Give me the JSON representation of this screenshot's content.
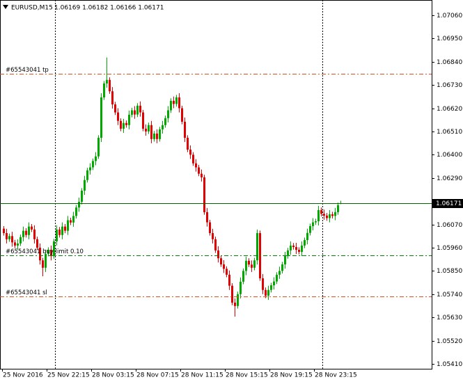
{
  "chart_data": {
    "type": "candlestick",
    "title": "EURUSD,M15",
    "quote": "1.06169 1.06182 1.06166 1.06171",
    "categories": [
      "25 Nov 2016",
      null,
      null,
      null,
      null,
      null,
      null,
      null,
      null,
      null,
      null,
      null,
      null,
      null,
      null,
      null,
      "25 Nov 22:15",
      null,
      null,
      null,
      null,
      null,
      null,
      null,
      null,
      null,
      null,
      null,
      null,
      null,
      null,
      null,
      "28 Nov 03:15",
      null,
      null,
      null,
      null,
      null,
      null,
      null,
      null,
      null,
      null,
      null,
      null,
      null,
      null,
      null,
      "28 Nov 07:15",
      null,
      null,
      null,
      null,
      null,
      null,
      null,
      null,
      null,
      null,
      null,
      null,
      null,
      null,
      null,
      "28 Nov 11:15",
      null,
      null,
      null,
      null,
      null,
      null,
      null,
      null,
      null,
      null,
      null,
      null,
      null,
      null,
      null,
      "28 Nov 15:15",
      null,
      null,
      null,
      null,
      null,
      null,
      null,
      null,
      null,
      null,
      null,
      null,
      null,
      null,
      null,
      "28 Nov 19:15",
      null,
      null,
      null,
      null,
      null,
      null,
      null,
      null,
      null,
      null,
      null,
      null,
      null,
      null,
      null,
      "28 Nov 23:15",
      null,
      null,
      null,
      null,
      null,
      null,
      null,
      null,
      null
    ],
    "open": [
      1.0605,
      1.06029,
      1.06,
      1.06015,
      1.05985,
      1.0597,
      1.0598,
      1.0601,
      1.0604,
      1.0602,
      1.0606,
      1.06046,
      1.06,
      1.0596,
      1.059,
      1.05865,
      1.05931,
      1.0595,
      1.0592,
      1.0599,
      1.06046,
      1.0602,
      1.0606,
      1.0604,
      1.0609,
      1.06079,
      1.0611,
      1.0615,
      1.06177,
      1.0623,
      1.0628,
      1.06326,
      1.0634,
      1.0637,
      1.06392,
      1.0648,
      1.06671,
      1.06737,
      1.06754,
      1.067,
      1.06638,
      1.066,
      1.0656,
      1.06523,
      1.0655,
      1.0654,
      1.06589,
      1.0661,
      1.0659,
      1.06632,
      1.066,
      1.06523,
      1.0651,
      1.0654,
      1.06474,
      1.065,
      1.06474,
      1.0652,
      1.0654,
      1.06573,
      1.0661,
      1.06655,
      1.0664,
      1.06671,
      1.0662,
      1.06556,
      1.0648,
      1.06424,
      1.064,
      1.06359,
      1.0634,
      1.0631,
      1.06293,
      1.06128,
      1.0608,
      1.06029,
      1.06,
      1.05947,
      1.0591,
      1.05881,
      1.0586,
      1.05832,
      1.0578,
      1.057,
      1.05684,
      1.0574,
      1.05799,
      1.0585,
      1.05898,
      1.0588,
      1.05865,
      1.059,
      1.06029,
      1.05815,
      1.0576,
      1.05733,
      1.0576,
      1.05782,
      1.058,
      1.05832,
      1.0585,
      1.05881,
      1.0592,
      1.05947,
      1.0597,
      1.05963,
      1.0595,
      1.0594,
      1.0597,
      1.05996,
      1.0603,
      1.06062,
      1.0608,
      1.06085,
      1.06138,
      1.0612,
      1.06112,
      1.061,
      1.06118,
      1.0611,
      1.06128,
      1.06169
    ],
    "high": [
      1.06062,
      1.06049,
      1.06027,
      1.06035,
      1.05997,
      1.06,
      1.06022,
      1.0606,
      1.06052,
      1.0608,
      1.06072,
      1.06066,
      1.06012,
      1.0598,
      1.05912,
      1.05951,
      1.05962,
      1.0597,
      1.06002,
      1.06066,
      1.06058,
      1.0608,
      1.06072,
      1.0611,
      1.06102,
      1.0613,
      1.06162,
      1.06197,
      1.06242,
      1.063,
      1.06338,
      1.0636,
      1.06382,
      1.06412,
      1.06492,
      1.06691,
      1.06749,
      1.0686,
      1.06766,
      1.0672,
      1.0665,
      1.0662,
      1.06572,
      1.0657,
      1.06562,
      1.06609,
      1.06622,
      1.0663,
      1.06644,
      1.06652,
      1.06612,
      1.06543,
      1.06552,
      1.0656,
      1.06512,
      1.0652,
      1.06532,
      1.0656,
      1.06585,
      1.0663,
      1.06667,
      1.06675,
      1.06683,
      1.06691,
      1.06632,
      1.06576,
      1.06492,
      1.06444,
      1.06412,
      1.06379,
      1.06352,
      1.0633,
      1.06305,
      1.06148,
      1.06092,
      1.06049,
      1.06012,
      1.05967,
      1.05922,
      1.05901,
      1.05872,
      1.05852,
      1.05792,
      1.0572,
      1.05752,
      1.05819,
      1.05862,
      1.05918,
      1.0591,
      1.059,
      1.05912,
      1.06046,
      1.06041,
      1.05835,
      1.05772,
      1.0578,
      1.05794,
      1.0582,
      1.05844,
      1.0587,
      1.05893,
      1.0594,
      1.05959,
      1.0599,
      1.05982,
      1.05983,
      1.05962,
      1.0599,
      1.06008,
      1.0605,
      1.06074,
      1.061,
      1.06097,
      1.06158,
      1.0615,
      1.0614,
      1.06124,
      1.06138,
      1.0613,
      1.06148,
      1.06173,
      1.06182
    ],
    "low": [
      1.06017,
      1.0598,
      1.05988,
      1.05965,
      1.05958,
      1.0595,
      1.05968,
      1.0599,
      1.06008,
      1.06,
      1.06034,
      1.0598,
      1.05948,
      1.0588,
      1.05825,
      1.05845,
      1.05919,
      1.059,
      1.05908,
      1.0597,
      1.06008,
      1.06,
      1.06028,
      1.0602,
      1.06067,
      1.06059,
      1.06098,
      1.0613,
      1.06165,
      1.0621,
      1.06268,
      1.06306,
      1.06328,
      1.0635,
      1.0638,
      1.0646,
      1.06659,
      1.06717,
      1.06688,
      1.06618,
      1.06588,
      1.0654,
      1.06511,
      1.06503,
      1.06528,
      1.0652,
      1.06577,
      1.0657,
      1.06578,
      1.0658,
      1.06511,
      1.0649,
      1.06498,
      1.06454,
      1.06462,
      1.06454,
      1.06462,
      1.065,
      1.06528,
      1.06553,
      1.06598,
      1.0662,
      1.06628,
      1.066,
      1.06544,
      1.0646,
      1.06412,
      1.0638,
      1.06347,
      1.0632,
      1.06298,
      1.06273,
      1.06116,
      1.0606,
      1.06017,
      1.0598,
      1.05935,
      1.0589,
      1.05869,
      1.0584,
      1.0582,
      1.0576,
      1.05688,
      1.05634,
      1.05672,
      1.0572,
      1.05787,
      1.0583,
      1.05868,
      1.05845,
      1.05853,
      1.0588,
      1.05803,
      1.0574,
      1.05721,
      1.05713,
      1.05748,
      1.05762,
      1.05788,
      1.05812,
      1.05838,
      1.05861,
      1.05908,
      1.05927,
      1.05951,
      1.0593,
      1.05928,
      1.0592,
      1.05958,
      1.05976,
      1.06018,
      1.06042,
      1.06068,
      1.06065,
      1.06108,
      1.06092,
      1.06088,
      1.0608,
      1.06098,
      1.0609,
      1.06116,
      1.06166
    ],
    "close": [
      1.06029,
      1.06,
      1.06015,
      1.05985,
      1.0597,
      1.0598,
      1.0601,
      1.0604,
      1.0602,
      1.0606,
      1.06046,
      1.06,
      1.0596,
      1.059,
      1.05865,
      1.05931,
      1.0595,
      1.0592,
      1.0599,
      1.06046,
      1.0602,
      1.0606,
      1.0604,
      1.0609,
      1.06079,
      1.0611,
      1.0615,
      1.06177,
      1.0623,
      1.0628,
      1.06326,
      1.0634,
      1.0637,
      1.06392,
      1.0648,
      1.06671,
      1.06737,
      1.06754,
      1.067,
      1.06638,
      1.066,
      1.0656,
      1.06523,
      1.0655,
      1.0654,
      1.06589,
      1.0661,
      1.0659,
      1.06632,
      1.066,
      1.06523,
      1.0651,
      1.0654,
      1.06474,
      1.065,
      1.06474,
      1.0652,
      1.0654,
      1.06573,
      1.0661,
      1.06655,
      1.0664,
      1.06671,
      1.0662,
      1.06556,
      1.0648,
      1.06424,
      1.064,
      1.06359,
      1.0634,
      1.0631,
      1.06293,
      1.06128,
      1.0608,
      1.06029,
      1.06,
      1.05947,
      1.0591,
      1.05881,
      1.0586,
      1.05832,
      1.0578,
      1.057,
      1.05684,
      1.0574,
      1.05799,
      1.0585,
      1.05898,
      1.0588,
      1.05865,
      1.059,
      1.06029,
      1.05815,
      1.0576,
      1.05733,
      1.0576,
      1.05782,
      1.058,
      1.05832,
      1.0585,
      1.05881,
      1.0592,
      1.05947,
      1.0597,
      1.05963,
      1.0595,
      1.0594,
      1.0597,
      1.05996,
      1.0603,
      1.06062,
      1.0608,
      1.06085,
      1.06138,
      1.0612,
      1.06112,
      1.061,
      1.06118,
      1.0611,
      1.06128,
      1.06161,
      1.06171
    ],
    "up_color": "#00a800",
    "down_color": "#e00000",
    "ylim": [
      1.05387,
      1.07132
    ],
    "yticks": [
      {
        "value": 1.0706,
        "label": "1.07060"
      },
      {
        "value": 1.0695,
        "label": "1.06950"
      },
      {
        "value": 1.0684,
        "label": "1.06840"
      },
      {
        "value": 1.0673,
        "label": "1.06730"
      },
      {
        "value": 1.0662,
        "label": "1.06620"
      },
      {
        "value": 1.0651,
        "label": "1.06510"
      },
      {
        "value": 1.064,
        "label": "1.06400"
      },
      {
        "value": 1.0629,
        "label": "1.06290"
      },
      {
        "value": 1.0607,
        "label": "1.06070"
      },
      {
        "value": 1.0596,
        "label": "1.05960"
      },
      {
        "value": 1.0585,
        "label": "1.05850"
      },
      {
        "value": 1.0574,
        "label": "1.05740"
      },
      {
        "value": 1.0563,
        "label": "1.05630"
      },
      {
        "value": 1.0552,
        "label": "1.05520"
      },
      {
        "value": 1.0541,
        "label": "1.05410"
      }
    ],
    "last_price": 1.06171,
    "last_price_color": "#006400",
    "orders": [
      {
        "label": "#65543041 tp",
        "price": 1.06783,
        "color": "#e0501e"
      },
      {
        "label": "#65543041 buy limit 0.10",
        "price": 1.05924,
        "color": "#008000"
      },
      {
        "label": "#65543041 sl",
        "price": 1.05729,
        "color": "#e0501e"
      }
    ]
  }
}
